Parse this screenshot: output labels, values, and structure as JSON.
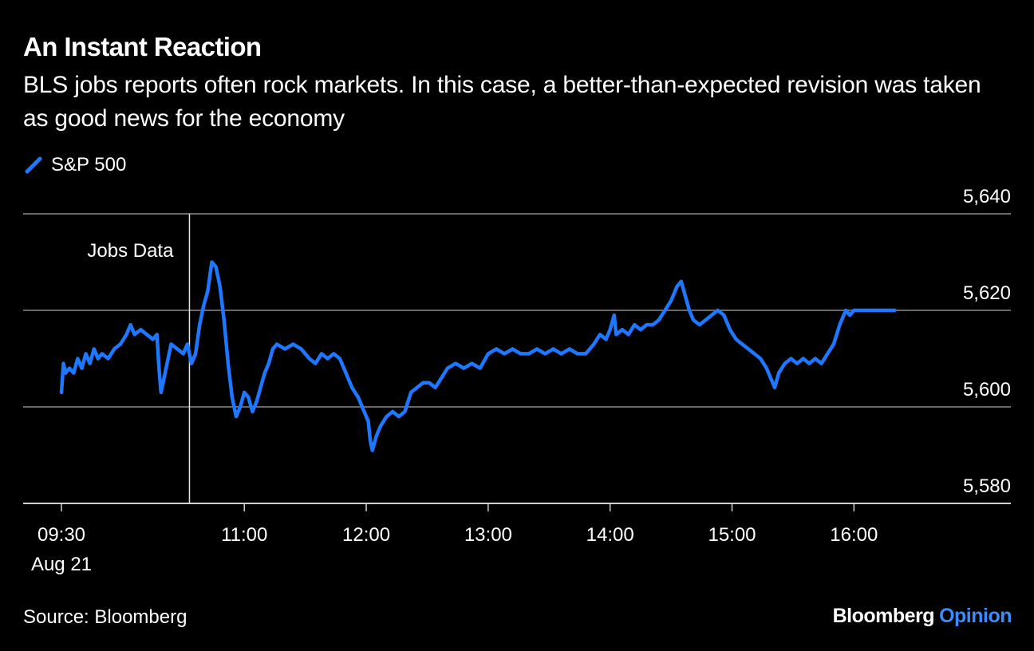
{
  "header": {
    "title": "An Instant Reaction",
    "subtitle": "BLS jobs reports often rock markets. In this case, a better-than-expected revision was taken as good news for the economy"
  },
  "footer": {
    "source": "Source: Bloomberg",
    "brand_primary": "Bloomberg",
    "brand_secondary": "Opinion"
  },
  "colors": {
    "background": "#000000",
    "series": "#1e78ff",
    "grid": "#8c8c8c",
    "text": "#ffffff",
    "brand_accent": "#3a8bff"
  },
  "chart_data": {
    "type": "line",
    "title": "An Instant Reaction",
    "subtitle": "BLS jobs reports often rock markets. In this case, a better-than-expected revision was taken as good news for the economy",
    "xlabel": "",
    "ylabel": "",
    "x_ticks": [
      "09:30",
      "11:00",
      "12:00",
      "13:00",
      "14:00",
      "15:00",
      "16:00"
    ],
    "x_tick_sublabel": "Aug 21",
    "x_range": [
      "09:30",
      "16:50"
    ],
    "y_ticks": [
      "5,580",
      "5,600",
      "5,620",
      "5,640"
    ],
    "ylim": [
      5580,
      5640
    ],
    "grid": true,
    "y_axis_side": "right",
    "legend_position": "top-left",
    "annotations": [
      {
        "time": "10:33",
        "label": "Jobs Data"
      }
    ],
    "series": [
      {
        "name": "S&P 500",
        "points": [
          [
            "09:30",
            5603
          ],
          [
            "09:31",
            5609
          ],
          [
            "09:32",
            5607
          ],
          [
            "09:34",
            5608
          ],
          [
            "09:36",
            5607
          ],
          [
            "09:38",
            5610
          ],
          [
            "09:40",
            5608
          ],
          [
            "09:42",
            5611
          ],
          [
            "09:44",
            5609
          ],
          [
            "09:46",
            5612
          ],
          [
            "09:48",
            5610
          ],
          [
            "09:50",
            5611
          ],
          [
            "09:53",
            5610
          ],
          [
            "09:56",
            5612
          ],
          [
            "09:59",
            5613
          ],
          [
            "10:02",
            5615
          ],
          [
            "10:04",
            5617
          ],
          [
            "10:06",
            5615
          ],
          [
            "10:09",
            5616
          ],
          [
            "10:12",
            5615
          ],
          [
            "10:15",
            5614
          ],
          [
            "10:17",
            5615
          ],
          [
            "10:18",
            5608
          ],
          [
            "10:19",
            5603
          ],
          [
            "10:20",
            5605
          ],
          [
            "10:22",
            5609
          ],
          [
            "10:24",
            5613
          ],
          [
            "10:27",
            5612
          ],
          [
            "10:30",
            5611
          ],
          [
            "10:32",
            5613
          ],
          [
            "10:34",
            5609
          ],
          [
            "10:36",
            5611
          ],
          [
            "10:38",
            5617
          ],
          [
            "10:40",
            5621
          ],
          [
            "10:42",
            5624
          ],
          [
            "10:44",
            5630
          ],
          [
            "10:46",
            5629
          ],
          [
            "10:48",
            5625
          ],
          [
            "10:50",
            5618
          ],
          [
            "10:52",
            5609
          ],
          [
            "10:54",
            5602
          ],
          [
            "10:56",
            5598
          ],
          [
            "10:58",
            5600
          ],
          [
            "11:00",
            5603
          ],
          [
            "11:02",
            5602
          ],
          [
            "11:04",
            5599
          ],
          [
            "11:06",
            5601
          ],
          [
            "11:08",
            5604
          ],
          [
            "11:10",
            5607
          ],
          [
            "11:12",
            5609
          ],
          [
            "11:14",
            5612
          ],
          [
            "11:16",
            5613
          ],
          [
            "11:20",
            5612
          ],
          [
            "11:24",
            5613
          ],
          [
            "11:28",
            5612
          ],
          [
            "11:32",
            5610
          ],
          [
            "11:35",
            5609
          ],
          [
            "11:38",
            5611
          ],
          [
            "11:41",
            5610
          ],
          [
            "11:44",
            5611
          ],
          [
            "11:47",
            5610
          ],
          [
            "11:50",
            5607
          ],
          [
            "11:53",
            5604
          ],
          [
            "11:56",
            5602
          ],
          [
            "11:59",
            5599
          ],
          [
            "12:01",
            5597
          ],
          [
            "12:02",
            5593
          ],
          [
            "12:03",
            5591
          ],
          [
            "12:05",
            5594
          ],
          [
            "12:07",
            5596
          ],
          [
            "12:10",
            5598
          ],
          [
            "12:13",
            5599
          ],
          [
            "12:16",
            5598
          ],
          [
            "12:19",
            5599
          ],
          [
            "12:22",
            5603
          ],
          [
            "12:25",
            5604
          ],
          [
            "12:28",
            5605
          ],
          [
            "12:31",
            5605
          ],
          [
            "12:34",
            5604
          ],
          [
            "12:37",
            5606
          ],
          [
            "12:40",
            5608
          ],
          [
            "12:44",
            5609
          ],
          [
            "12:48",
            5608
          ],
          [
            "12:52",
            5609
          ],
          [
            "12:56",
            5608
          ],
          [
            "13:00",
            5611
          ],
          [
            "13:04",
            5612
          ],
          [
            "13:08",
            5611
          ],
          [
            "13:12",
            5612
          ],
          [
            "13:16",
            5611
          ],
          [
            "13:20",
            5611
          ],
          [
            "13:24",
            5612
          ],
          [
            "13:28",
            5611
          ],
          [
            "13:32",
            5612
          ],
          [
            "13:36",
            5611
          ],
          [
            "13:40",
            5612
          ],
          [
            "13:44",
            5611
          ],
          [
            "13:48",
            5611
          ],
          [
            "13:52",
            5613
          ],
          [
            "13:55",
            5615
          ],
          [
            "13:58",
            5614
          ],
          [
            "14:00",
            5616
          ],
          [
            "14:02",
            5619
          ],
          [
            "14:03",
            5615
          ],
          [
            "14:06",
            5616
          ],
          [
            "14:09",
            5615
          ],
          [
            "14:12",
            5617
          ],
          [
            "14:15",
            5616
          ],
          [
            "14:18",
            5617
          ],
          [
            "14:21",
            5617
          ],
          [
            "14:24",
            5618
          ],
          [
            "14:27",
            5620
          ],
          [
            "14:30",
            5622
          ],
          [
            "14:33",
            5625
          ],
          [
            "14:35",
            5626
          ],
          [
            "14:37",
            5623
          ],
          [
            "14:39",
            5620
          ],
          [
            "14:41",
            5618
          ],
          [
            "14:44",
            5617
          ],
          [
            "14:47",
            5618
          ],
          [
            "14:50",
            5619
          ],
          [
            "14:53",
            5620
          ],
          [
            "14:56",
            5619
          ],
          [
            "14:59",
            5616
          ],
          [
            "15:02",
            5614
          ],
          [
            "15:05",
            5613
          ],
          [
            "15:08",
            5612
          ],
          [
            "15:11",
            5611
          ],
          [
            "15:14",
            5610
          ],
          [
            "15:17",
            5608
          ],
          [
            "15:19",
            5606
          ],
          [
            "15:21",
            5604
          ],
          [
            "15:23",
            5607
          ],
          [
            "15:26",
            5609
          ],
          [
            "15:29",
            5610
          ],
          [
            "15:32",
            5609
          ],
          [
            "15:35",
            5610
          ],
          [
            "15:38",
            5609
          ],
          [
            "15:41",
            5610
          ],
          [
            "15:44",
            5609
          ],
          [
            "15:47",
            5611
          ],
          [
            "15:50",
            5613
          ],
          [
            "15:53",
            5617
          ],
          [
            "15:56",
            5620
          ],
          [
            "15:58",
            5619
          ],
          [
            "16:00",
            5620
          ],
          [
            "16:10",
            5620
          ],
          [
            "16:20",
            5620
          ]
        ]
      }
    ]
  }
}
